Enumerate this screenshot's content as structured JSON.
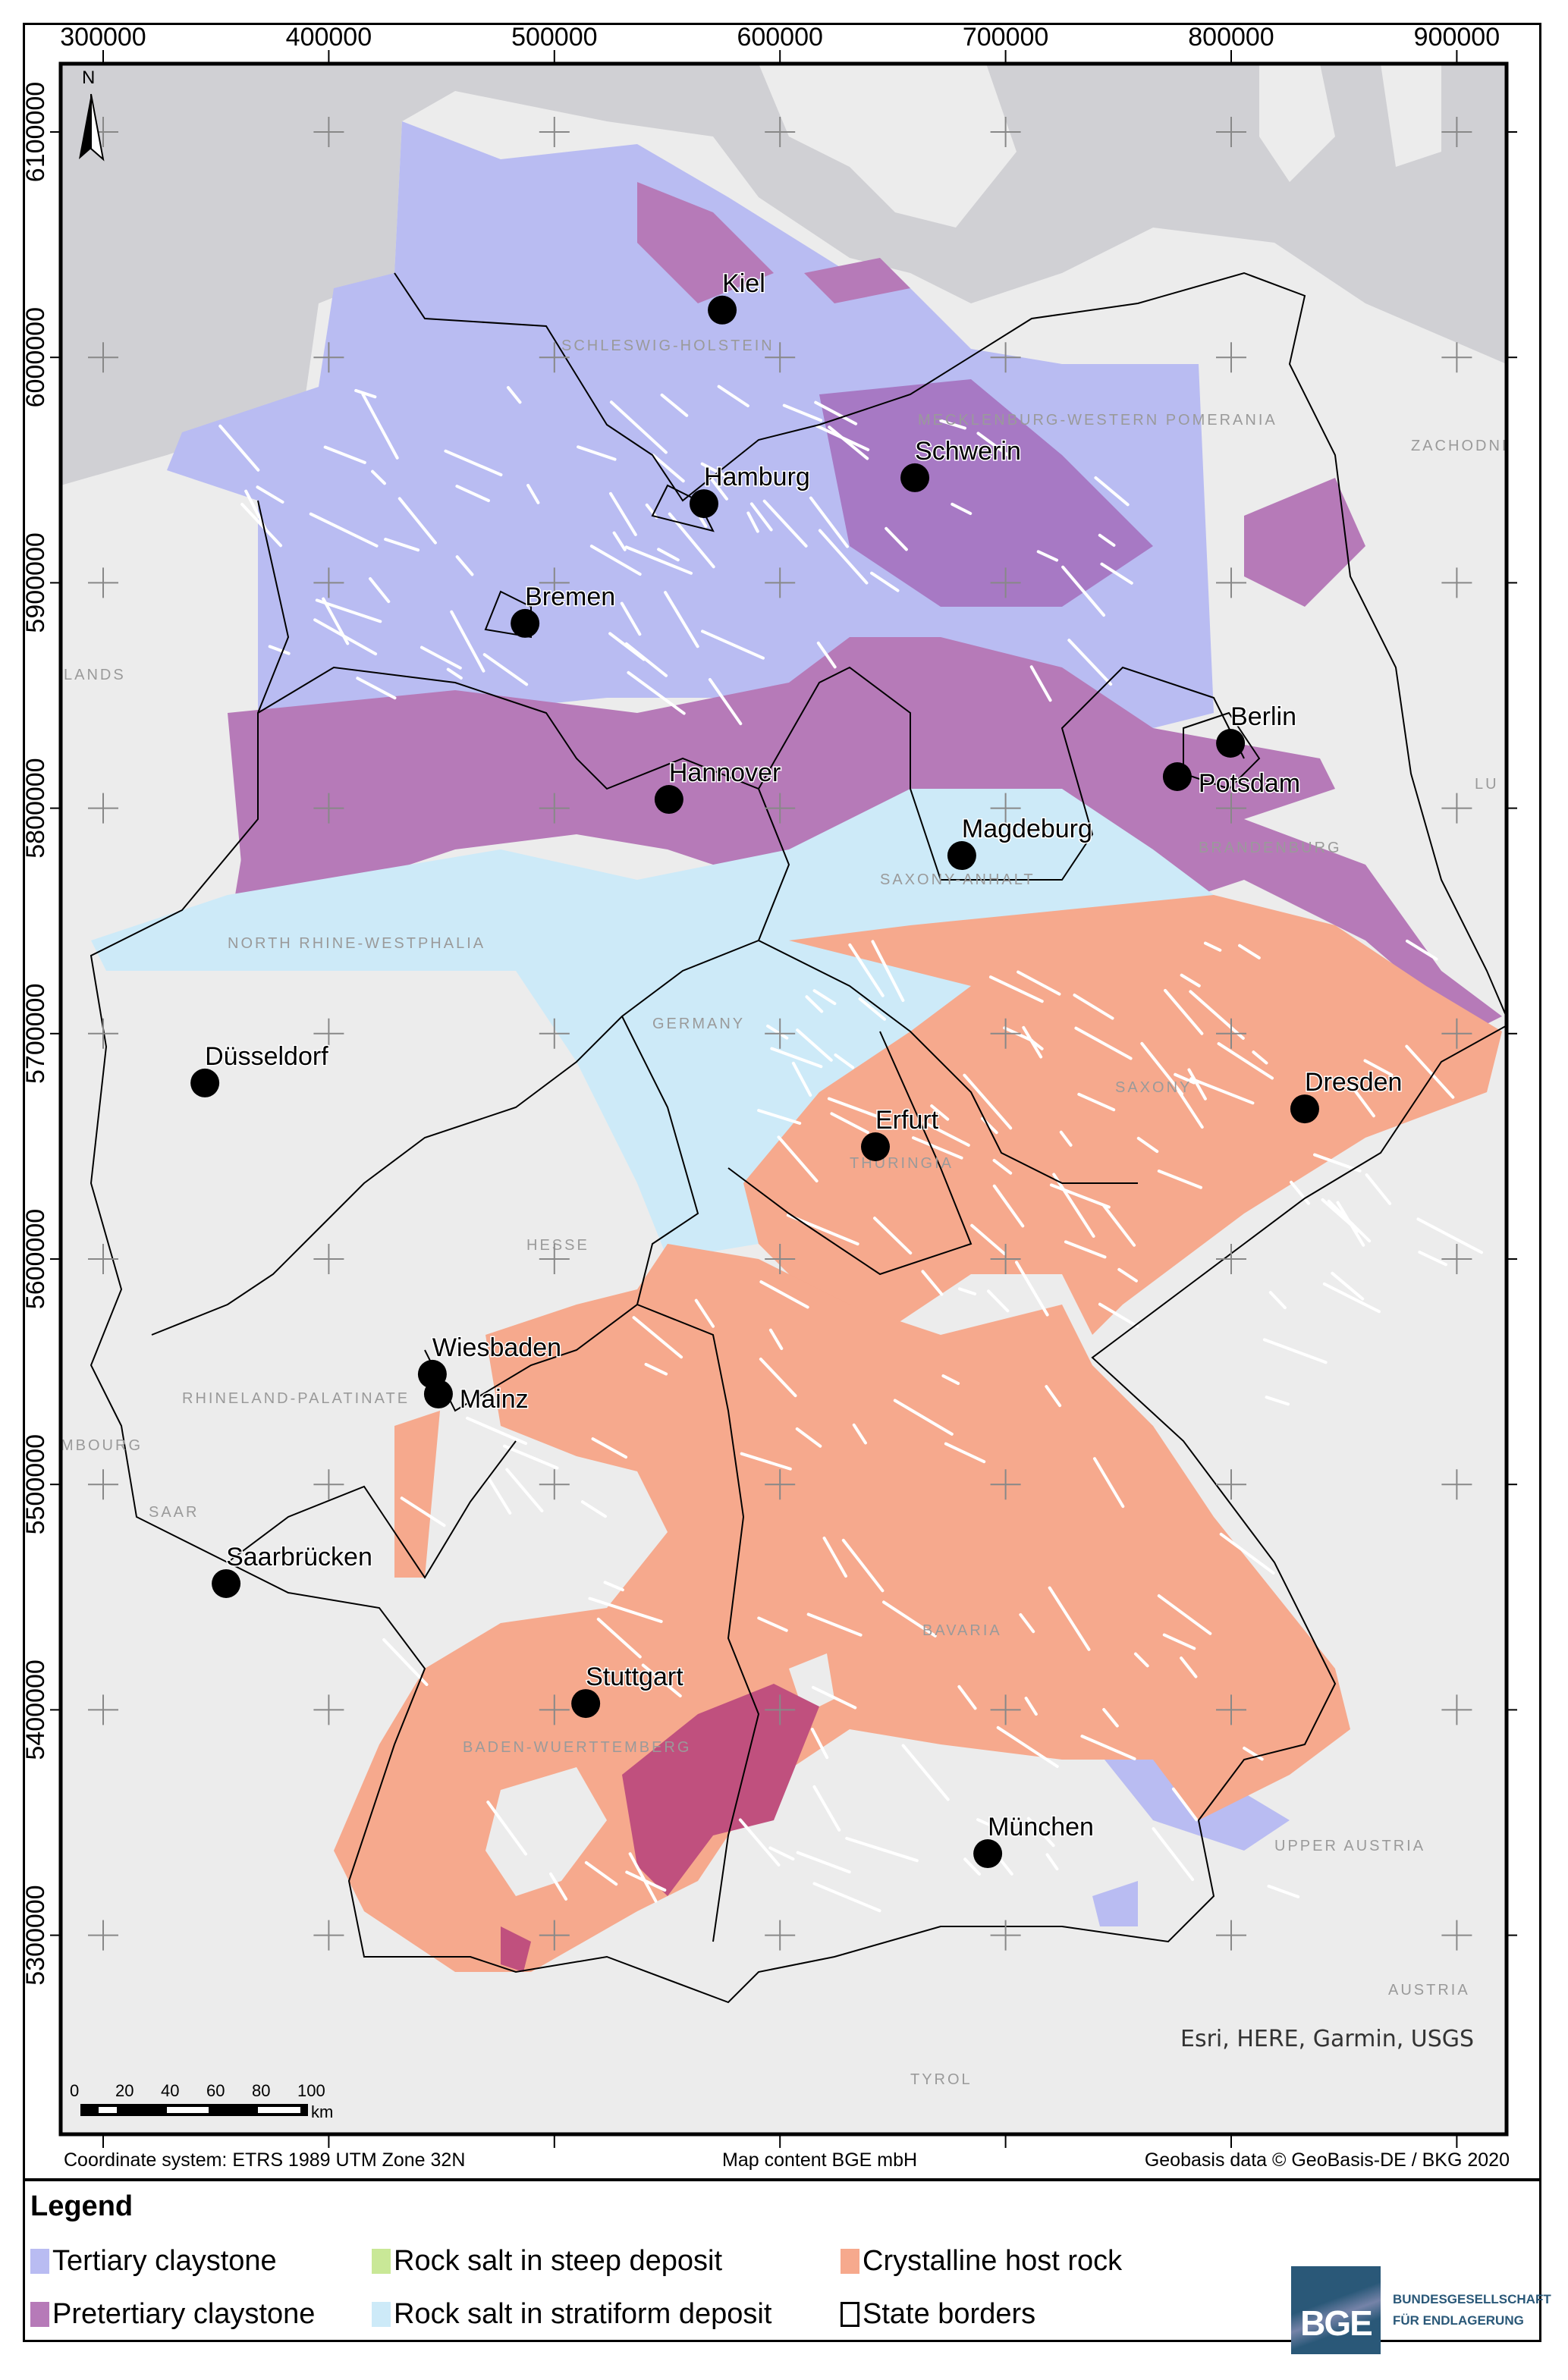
{
  "axes": {
    "x_ticks": [
      "300000",
      "400000",
      "500000",
      "600000",
      "700000",
      "800000",
      "900000"
    ],
    "y_ticks": [
      "6100000",
      "6000000",
      "5900000",
      "5800000",
      "5700000",
      "5600000",
      "5500000",
      "5400000",
      "5300000"
    ]
  },
  "north_arrow": {
    "label": "N"
  },
  "cities": [
    {
      "name": "Kiel",
      "easting": 574400,
      "northing": 6021000
    },
    {
      "name": "Hamburg",
      "easting": 566300,
      "northing": 5935100
    },
    {
      "name": "Schwerin",
      "easting": 659800,
      "northing": 5946600
    },
    {
      "name": "Bremen",
      "easting": 487000,
      "northing": 5882000
    },
    {
      "name": "Berlin",
      "easting": 799700,
      "northing": 5828800
    },
    {
      "name": "Potsdam",
      "easting": 776100,
      "northing": 5814000
    },
    {
      "name": "Hannover",
      "easting": 550800,
      "northing": 5803900
    },
    {
      "name": "Magdeburg",
      "easting": 680600,
      "northing": 5779000
    },
    {
      "name": "Düsseldorf",
      "easting": 345100,
      "northing": 5678100
    },
    {
      "name": "Dresden",
      "easting": 832600,
      "northing": 5666600
    },
    {
      "name": "Erfurt",
      "easting": 642300,
      "northing": 5649800
    },
    {
      "name": "Wiesbaden",
      "easting": 445900,
      "northing": 5548900
    },
    {
      "name": "Mainz",
      "easting": 448600,
      "northing": 5540100
    },
    {
      "name": "Saarbrücken",
      "easting": 354500,
      "northing": 5456000
    },
    {
      "name": "Stuttgart",
      "easting": 513900,
      "northing": 5402800
    },
    {
      "name": "München",
      "easting": 692100,
      "northing": 5336200
    }
  ],
  "basemap_labels": [
    "LANDS",
    "SCHLESWIG-HOLSTEIN",
    "MECKLENBURG-WESTERN POMERANIA",
    "ZACHODNIO",
    "NORTH RHINE-WESTPHALIA",
    "SAXONY-ANHALT",
    "BRANDENBURG",
    "GERMANY",
    "SAXONY",
    "THURINGIA",
    "HESSE",
    "RHINELAND-PALATINATE",
    "MBOURG",
    "SAAR",
    "BAVARIA",
    "BADEN-WUERTTEMBERG",
    "UPPER AUSTRIA",
    "AUSTRIA",
    "TYROL",
    "LU"
  ],
  "scale_bar": {
    "labels": [
      "0",
      "20",
      "40",
      "60",
      "80",
      "100"
    ],
    "unit": "km"
  },
  "attribution": "Esri, HERE, Garmin, USGS",
  "footer": {
    "coordinate_system": "Coordinate system: ETRS 1989 UTM Zone 32N",
    "map_content": "Map content BGE mbH",
    "geobasis": "Geobasis data © GeoBasis-DE / BKG 2020"
  },
  "legend": {
    "title": "Legend",
    "items": [
      {
        "label": "Tertiary claystone",
        "color": "#b9bcf2"
      },
      {
        "label": "Rock salt in steep deposit",
        "color": "#c9e897"
      },
      {
        "label": "Crystalline host rock",
        "color": "#f6a98d"
      },
      {
        "label": "Pretertiary claystone",
        "color": "#b67ab8"
      },
      {
        "label": "Rock salt in stratiform deposit",
        "color": "#cdeaf8"
      },
      {
        "label": "State borders",
        "color": "#ffffff"
      }
    ]
  },
  "logo": {
    "abbr": "BGE",
    "line1": "BUNDESGESELLSCHAFT",
    "line2": "FÜR ENDLAGERUNG"
  },
  "colors": {
    "sea": "#d0d0d4",
    "land": "#ececec",
    "overlap_claystone": "#c0507e"
  }
}
